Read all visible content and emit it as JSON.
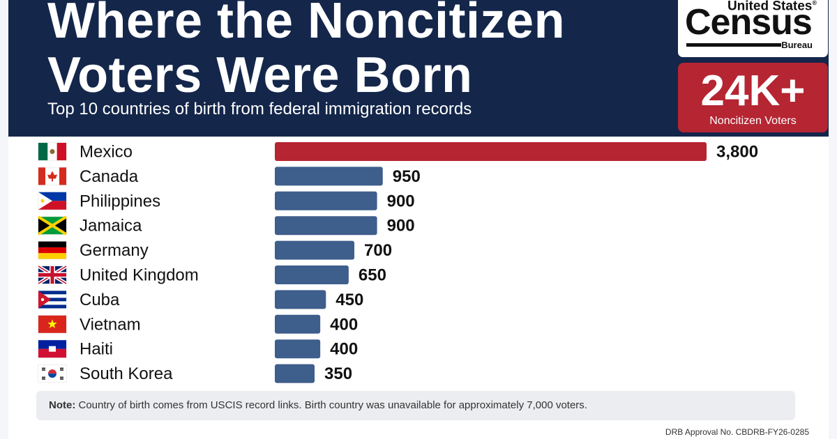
{
  "header": {
    "title_line1": "Where the Noncitizen",
    "title_line2": "Voters Were Born",
    "subtitle": "Top 10 countries of birth from federal immigration records"
  },
  "logo": {
    "line1": "United States",
    "mark": "®",
    "main": "Census",
    "sub": "Bureau"
  },
  "stat": {
    "value": "24K+",
    "label": "Noncitizen Voters"
  },
  "colors": {
    "header_bg": "#14264a",
    "highlight_bar": "#b52532",
    "bar": "#3e5e8c",
    "stat_bg": "#b52532"
  },
  "chart_data": {
    "type": "bar",
    "orientation": "horizontal",
    "categories": [
      "Mexico",
      "Canada",
      "Philippines",
      "Jamaica",
      "Germany",
      "United Kingdom",
      "Cuba",
      "Vietnam",
      "Haiti",
      "South Korea"
    ],
    "values": [
      3800,
      950,
      900,
      900,
      700,
      650,
      450,
      400,
      400,
      350
    ],
    "value_labels": [
      "3,800",
      "950",
      "900",
      "900",
      "700",
      "650",
      "450",
      "400",
      "400",
      "350"
    ],
    "flags": [
      "mexico-flag-icon",
      "canada-flag-icon",
      "philippines-flag-icon",
      "jamaica-flag-icon",
      "germany-flag-icon",
      "uk-flag-icon",
      "cuba-flag-icon",
      "vietnam-flag-icon",
      "haiti-flag-icon",
      "south-korea-flag-icon"
    ],
    "highlight_index": 0,
    "grid": false,
    "legend": "none"
  },
  "note": {
    "label": "Note:",
    "text": "Country of birth comes from USCIS record links. Birth country was unavailable for approximately 7,000 voters."
  },
  "approval": "DRB Approval No. CBDRB-FY26-0285"
}
